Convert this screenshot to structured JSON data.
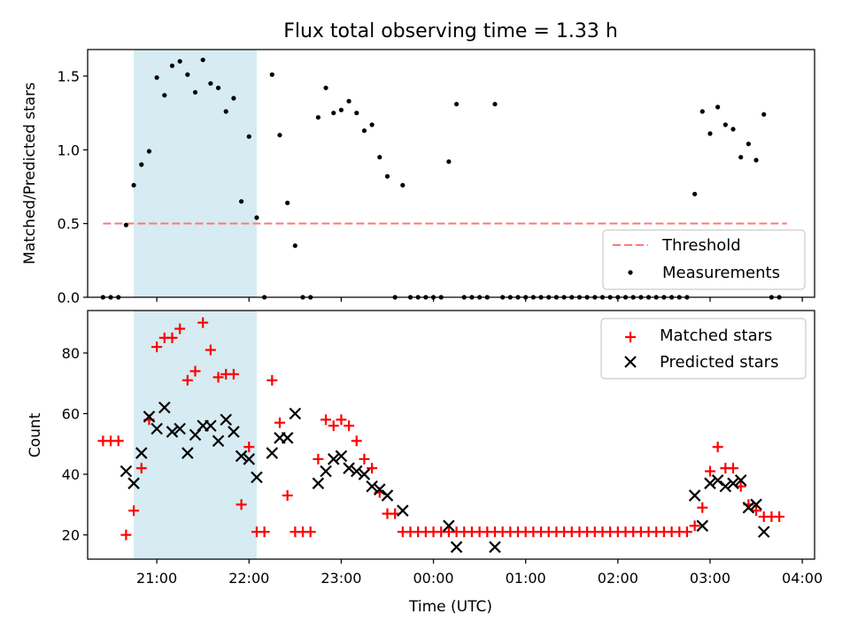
{
  "chart_data": [
    {
      "type": "scatter",
      "title": "Flux total observing time = 1.33 h",
      "xlabel": "",
      "ylabel": "Matched/Predicted stars",
      "xlim": [
        "20:15",
        "04:08"
      ],
      "ylim": [
        0.0,
        1.68
      ],
      "yticks": [
        0.0,
        0.5,
        1.0,
        1.5
      ],
      "ytick_labels": [
        "0.0",
        "0.5",
        "1.0",
        "1.5"
      ],
      "highlight_band": {
        "x_from": "20:45",
        "x_to": "22:05",
        "color": "#add8e6"
      },
      "threshold": {
        "name": "Threshold",
        "y": 0.5,
        "x_from": "20:25",
        "x_to": "03:50",
        "color": "#ff7777",
        "style": "dashed"
      },
      "series": [
        {
          "name": "Measurements",
          "color": "#000000",
          "points": [
            [
              "20:25",
              0.0
            ],
            [
              "20:30",
              0.0
            ],
            [
              "20:35",
              0.0
            ],
            [
              "20:40",
              0.49
            ],
            [
              "20:45",
              0.76
            ],
            [
              "20:50",
              0.9
            ],
            [
              "20:55",
              0.99
            ],
            [
              "21:00",
              1.49
            ],
            [
              "21:05",
              1.37
            ],
            [
              "21:10",
              1.57
            ],
            [
              "21:15",
              1.6
            ],
            [
              "21:20",
              1.51
            ],
            [
              "21:25",
              1.39
            ],
            [
              "21:30",
              1.61
            ],
            [
              "21:35",
              1.45
            ],
            [
              "21:40",
              1.42
            ],
            [
              "21:45",
              1.26
            ],
            [
              "21:50",
              1.35
            ],
            [
              "21:55",
              0.65
            ],
            [
              "22:00",
              1.09
            ],
            [
              "22:05",
              0.54
            ],
            [
              "22:10",
              0.0
            ],
            [
              "22:15",
              1.51
            ],
            [
              "22:20",
              1.1
            ],
            [
              "22:25",
              0.64
            ],
            [
              "22:30",
              0.35
            ],
            [
              "22:35",
              0.0
            ],
            [
              "22:40",
              0.0
            ],
            [
              "22:45",
              1.22
            ],
            [
              "22:50",
              1.42
            ],
            [
              "22:55",
              1.25
            ],
            [
              "23:00",
              1.27
            ],
            [
              "23:05",
              1.33
            ],
            [
              "23:10",
              1.25
            ],
            [
              "23:15",
              1.13
            ],
            [
              "23:20",
              1.17
            ],
            [
              "23:25",
              0.95
            ],
            [
              "23:30",
              0.82
            ],
            [
              "23:35",
              0.0
            ],
            [
              "23:40",
              0.76
            ],
            [
              "23:45",
              0.0
            ],
            [
              "23:50",
              0.0
            ],
            [
              "23:55",
              0.0
            ],
            [
              "00:00",
              0.0
            ],
            [
              "00:05",
              0.0
            ],
            [
              "00:10",
              0.92
            ],
            [
              "00:15",
              1.31
            ],
            [
              "00:20",
              0.0
            ],
            [
              "00:25",
              0.0
            ],
            [
              "00:30",
              0.0
            ],
            [
              "00:35",
              0.0
            ],
            [
              "00:40",
              1.31
            ],
            [
              "00:45",
              0.0
            ],
            [
              "00:50",
              0.0
            ],
            [
              "00:55",
              0.0
            ],
            [
              "01:00",
              0.0
            ],
            [
              "01:05",
              0.0
            ],
            [
              "01:10",
              0.0
            ],
            [
              "01:15",
              0.0
            ],
            [
              "01:20",
              0.0
            ],
            [
              "01:25",
              0.0
            ],
            [
              "01:30",
              0.0
            ],
            [
              "01:35",
              0.0
            ],
            [
              "01:40",
              0.0
            ],
            [
              "01:45",
              0.0
            ],
            [
              "01:50",
              0.0
            ],
            [
              "01:55",
              0.0
            ],
            [
              "02:00",
              0.0
            ],
            [
              "02:05",
              0.0
            ],
            [
              "02:10",
              0.0
            ],
            [
              "02:15",
              0.0
            ],
            [
              "02:20",
              0.0
            ],
            [
              "02:25",
              0.0
            ],
            [
              "02:30",
              0.0
            ],
            [
              "02:35",
              0.0
            ],
            [
              "02:40",
              0.0
            ],
            [
              "02:45",
              0.0
            ],
            [
              "02:50",
              0.7
            ],
            [
              "02:55",
              1.26
            ],
            [
              "03:00",
              1.11
            ],
            [
              "03:05",
              1.29
            ],
            [
              "03:10",
              1.17
            ],
            [
              "03:15",
              1.14
            ],
            [
              "03:20",
              0.95
            ],
            [
              "03:25",
              1.04
            ],
            [
              "03:30",
              0.93
            ],
            [
              "03:35",
              1.24
            ],
            [
              "03:40",
              0.0
            ],
            [
              "03:45",
              0.0
            ]
          ]
        }
      ],
      "legend": {
        "placement": "lower right",
        "entries": [
          "Threshold",
          "Measurements"
        ]
      },
      "grid": false
    },
    {
      "type": "scatter",
      "title": "",
      "xlabel": "Time (UTC)",
      "ylabel": "Count",
      "xlim": [
        "20:15",
        "04:08"
      ],
      "ylim": [
        12,
        94
      ],
      "yticks": [
        20,
        40,
        60,
        80
      ],
      "ytick_labels": [
        "20",
        "40",
        "60",
        "80"
      ],
      "xticks": [
        "21:00",
        "22:00",
        "23:00",
        "00:00",
        "01:00",
        "02:00",
        "03:00",
        "04:00"
      ],
      "xtick_labels": [
        "21:00",
        "22:00",
        "23:00",
        "00:00",
        "01:00",
        "02:00",
        "03:00",
        "04:00"
      ],
      "highlight_band": {
        "x_from": "20:45",
        "x_to": "22:05",
        "color": "#add8e6"
      },
      "series": [
        {
          "name": "Matched stars",
          "marker": "plus",
          "color": "#ff0000",
          "points": [
            [
              "20:25",
              51
            ],
            [
              "20:30",
              51
            ],
            [
              "20:35",
              51
            ],
            [
              "20:40",
              20
            ],
            [
              "20:45",
              28
            ],
            [
              "20:50",
              42
            ],
            [
              "20:55",
              58
            ],
            [
              "21:00",
              82
            ],
            [
              "21:05",
              85
            ],
            [
              "21:10",
              85
            ],
            [
              "21:15",
              88
            ],
            [
              "21:20",
              71
            ],
            [
              "21:25",
              74
            ],
            [
              "21:30",
              90
            ],
            [
              "21:35",
              81
            ],
            [
              "21:40",
              72
            ],
            [
              "21:45",
              73
            ],
            [
              "21:50",
              73
            ],
            [
              "21:55",
              30
            ],
            [
              "22:00",
              49
            ],
            [
              "22:05",
              21
            ],
            [
              "22:10",
              21
            ],
            [
              "22:15",
              71
            ],
            [
              "22:20",
              57
            ],
            [
              "22:25",
              33
            ],
            [
              "22:30",
              21
            ],
            [
              "22:35",
              21
            ],
            [
              "22:40",
              21
            ],
            [
              "22:45",
              45
            ],
            [
              "22:50",
              58
            ],
            [
              "22:55",
              56
            ],
            [
              "23:00",
              58
            ],
            [
              "23:05",
              56
            ],
            [
              "23:10",
              51
            ],
            [
              "23:15",
              45
            ],
            [
              "23:20",
              42
            ],
            [
              "23:25",
              34
            ],
            [
              "23:30",
              27
            ],
            [
              "23:35",
              27
            ],
            [
              "23:40",
              21
            ],
            [
              "23:45",
              21
            ],
            [
              "23:50",
              21
            ],
            [
              "23:55",
              21
            ],
            [
              "00:00",
              21
            ],
            [
              "00:05",
              21
            ],
            [
              "00:10",
              21
            ],
            [
              "00:15",
              21
            ],
            [
              "00:20",
              21
            ],
            [
              "00:25",
              21
            ],
            [
              "00:30",
              21
            ],
            [
              "00:35",
              21
            ],
            [
              "00:40",
              21
            ],
            [
              "00:45",
              21
            ],
            [
              "00:50",
              21
            ],
            [
              "00:55",
              21
            ],
            [
              "01:00",
              21
            ],
            [
              "01:05",
              21
            ],
            [
              "01:10",
              21
            ],
            [
              "01:15",
              21
            ],
            [
              "01:20",
              21
            ],
            [
              "01:25",
              21
            ],
            [
              "01:30",
              21
            ],
            [
              "01:35",
              21
            ],
            [
              "01:40",
              21
            ],
            [
              "01:45",
              21
            ],
            [
              "01:50",
              21
            ],
            [
              "01:55",
              21
            ],
            [
              "02:00",
              21
            ],
            [
              "02:05",
              21
            ],
            [
              "02:10",
              21
            ],
            [
              "02:15",
              21
            ],
            [
              "02:20",
              21
            ],
            [
              "02:25",
              21
            ],
            [
              "02:30",
              21
            ],
            [
              "02:35",
              21
            ],
            [
              "02:40",
              21
            ],
            [
              "02:45",
              21
            ],
            [
              "02:50",
              23
            ],
            [
              "02:55",
              29
            ],
            [
              "03:00",
              41
            ],
            [
              "03:05",
              49
            ],
            [
              "03:10",
              42
            ],
            [
              "03:15",
              42
            ],
            [
              "03:20",
              36
            ],
            [
              "03:25",
              30
            ],
            [
              "03:30",
              28
            ],
            [
              "03:35",
              26
            ],
            [
              "03:40",
              26
            ],
            [
              "03:45",
              26
            ]
          ]
        },
        {
          "name": "Predicted stars",
          "marker": "x",
          "color": "#000000",
          "points": [
            [
              "20:40",
              41
            ],
            [
              "20:45",
              37
            ],
            [
              "20:50",
              47
            ],
            [
              "20:55",
              59
            ],
            [
              "21:00",
              55
            ],
            [
              "21:05",
              62
            ],
            [
              "21:10",
              54
            ],
            [
              "21:15",
              55
            ],
            [
              "21:20",
              47
            ],
            [
              "21:25",
              53
            ],
            [
              "21:30",
              56
            ],
            [
              "21:35",
              56
            ],
            [
              "21:40",
              51
            ],
            [
              "21:45",
              58
            ],
            [
              "21:50",
              54
            ],
            [
              "21:55",
              46
            ],
            [
              "22:00",
              45
            ],
            [
              "22:05",
              39
            ],
            [
              "22:15",
              47
            ],
            [
              "22:20",
              52
            ],
            [
              "22:25",
              52
            ],
            [
              "22:30",
              60
            ],
            [
              "22:45",
              37
            ],
            [
              "22:50",
              41
            ],
            [
              "22:55",
              45
            ],
            [
              "23:00",
              46
            ],
            [
              "23:05",
              42
            ],
            [
              "23:10",
              41
            ],
            [
              "23:15",
              40
            ],
            [
              "23:20",
              36
            ],
            [
              "23:25",
              35
            ],
            [
              "23:30",
              33
            ],
            [
              "23:40",
              28
            ],
            [
              "00:10",
              23
            ],
            [
              "00:15",
              16
            ],
            [
              "00:40",
              16
            ],
            [
              "02:50",
              33
            ],
            [
              "02:55",
              23
            ],
            [
              "03:00",
              37
            ],
            [
              "03:05",
              38
            ],
            [
              "03:10",
              36
            ],
            [
              "03:15",
              37
            ],
            [
              "03:20",
              38
            ],
            [
              "03:25",
              29
            ],
            [
              "03:30",
              30
            ],
            [
              "03:35",
              21
            ]
          ]
        }
      ],
      "legend": {
        "placement": "upper right",
        "entries": [
          "Matched stars",
          "Predicted stars"
        ]
      },
      "grid": false
    }
  ]
}
